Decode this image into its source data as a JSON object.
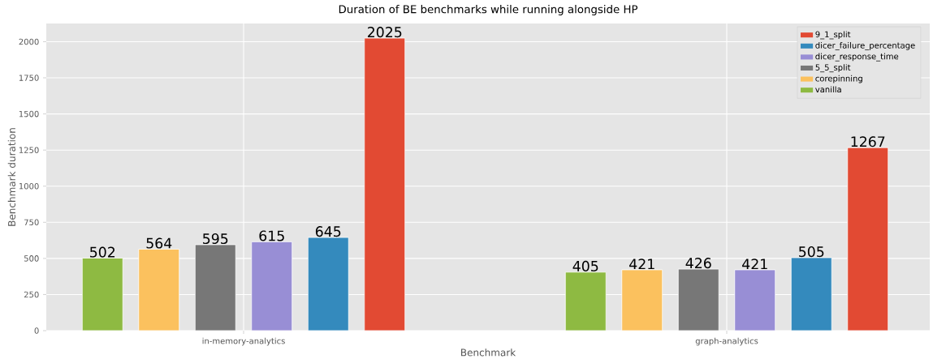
{
  "chart_data": {
    "type": "bar",
    "title": "Duration of BE benchmarks while running alongside HP",
    "xlabel": "Benchmark",
    "ylabel": "Benchmark duration",
    "categories": [
      "in-memory-analytics",
      "graph-analytics"
    ],
    "series": [
      {
        "name": "vanilla",
        "color": "#8eba42",
        "values": [
          502,
          405
        ]
      },
      {
        "name": "corepinning",
        "color": "#fbc15e",
        "values": [
          564,
          421
        ]
      },
      {
        "name": "5_5_split",
        "color": "#777777",
        "values": [
          595,
          426
        ]
      },
      {
        "name": "dicer_response_time",
        "color": "#988ed5",
        "values": [
          615,
          421
        ]
      },
      {
        "name": "dicer_failure_percentage",
        "color": "#348abd",
        "values": [
          645,
          505
        ]
      },
      {
        "name": "9_1_split",
        "color": "#e24a33",
        "values": [
          2025,
          1267
        ]
      }
    ],
    "ylim": [
      0,
      2126
    ],
    "yticks": [
      0,
      250,
      500,
      750,
      1000,
      1250,
      1500,
      1750,
      2000
    ],
    "grid": true,
    "legend": "top right",
    "data_labels": true
  }
}
